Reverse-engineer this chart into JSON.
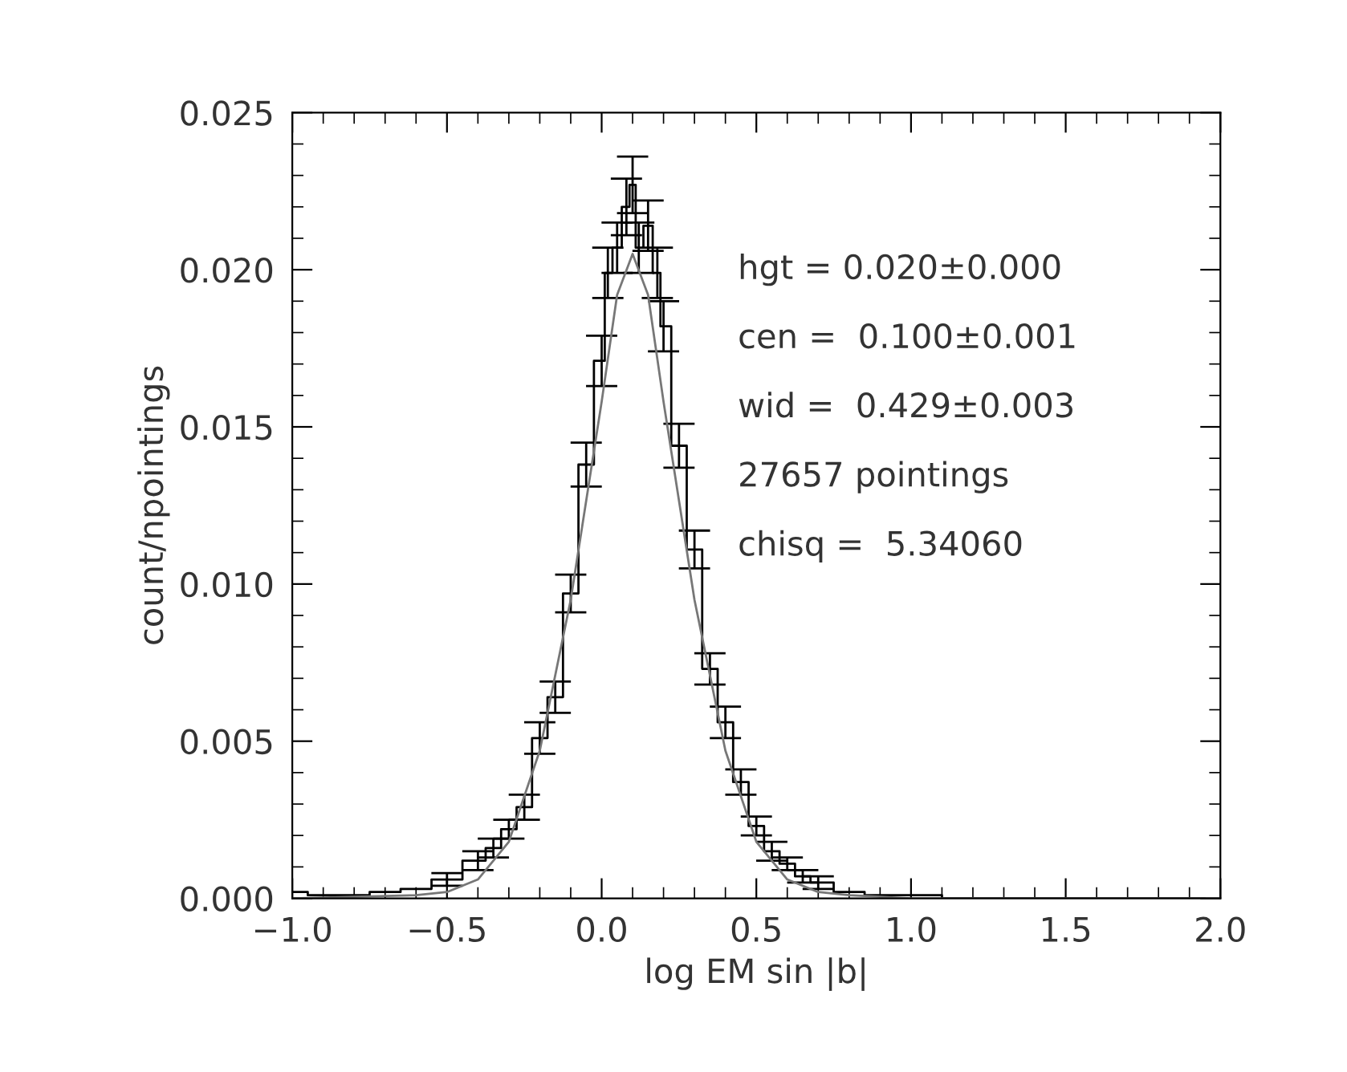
{
  "chart_data": {
    "type": "step",
    "xlabel": "log EM sin |b|",
    "ylabel": "count/npointings",
    "xlim": [
      -1.0,
      2.0
    ],
    "xticks": [
      {
        "value": -1.0,
        "label": "−1.0"
      },
      {
        "value": -0.5,
        "label": "−0.5"
      },
      {
        "value": 0.0,
        "label": "0.0"
      },
      {
        "value": 0.5,
        "label": "0.5"
      },
      {
        "value": 1.0,
        "label": "1.0"
      },
      {
        "value": 1.5,
        "label": "1.5"
      },
      {
        "value": 2.0,
        "label": "2.0"
      }
    ],
    "ylim": [
      0.0,
      0.025
    ],
    "yticks": [
      {
        "value": 0.0,
        "label": "0.000"
      },
      {
        "value": 0.005,
        "label": "0.005"
      },
      {
        "value": 0.01,
        "label": "0.010"
      },
      {
        "value": 0.015,
        "label": "0.015"
      },
      {
        "value": 0.02,
        "label": "0.020"
      },
      {
        "value": 0.025,
        "label": "0.025"
      }
    ],
    "grid": false,
    "legend": false,
    "annotations": [
      "hgt = 0.020±0.000",
      "cen =  0.100±0.001",
      "wid =  0.429±0.003",
      "27657 pointings",
      "chisq =  5.34060"
    ],
    "series": [
      {
        "color": "#000000",
        "x": [
          -1.0,
          -0.9,
          -0.8,
          -0.7,
          -0.6,
          -0.5,
          -0.4,
          -0.35,
          -0.3,
          -0.25,
          -0.2,
          -0.15,
          -0.1,
          -0.05,
          0.0,
          0.02,
          0.05,
          0.08,
          0.1,
          0.12,
          0.15,
          0.18,
          0.2,
          0.25,
          0.3,
          0.35,
          0.4,
          0.45,
          0.5,
          0.55,
          0.6,
          0.65,
          0.7,
          0.8,
          0.9,
          1.0,
          1.2,
          1.4,
          1.6,
          1.8,
          1.95
        ],
        "values": [
          0.0002,
          0.0001,
          0.0001,
          0.0002,
          0.0003,
          0.0006,
          0.0012,
          0.0016,
          0.0022,
          0.0029,
          0.0051,
          0.0064,
          0.0097,
          0.0138,
          0.0171,
          0.0199,
          0.0207,
          0.022,
          0.0227,
          0.0207,
          0.0214,
          0.0199,
          0.0182,
          0.0144,
          0.0111,
          0.0073,
          0.0056,
          0.0037,
          0.0023,
          0.0015,
          0.0011,
          0.0007,
          0.0005,
          0.0002,
          0.0001,
          0.0001,
          0.0,
          0.0,
          0.0,
          0.0,
          0.0
        ],
        "errors": [
          null,
          null,
          null,
          null,
          null,
          0.0002,
          0.0003,
          0.0003,
          0.0003,
          0.0004,
          0.0005,
          0.0005,
          0.0006,
          0.0007,
          0.0008,
          0.0008,
          0.0008,
          0.0009,
          0.0009,
          0.0008,
          0.0008,
          0.0008,
          0.0008,
          0.0007,
          0.0006,
          0.0005,
          0.0005,
          0.0004,
          0.0003,
          0.0003,
          0.0002,
          0.0002,
          0.0002,
          null,
          null,
          null,
          null,
          null,
          null,
          null,
          null
        ]
      },
      {
        "type": "line",
        "color": "#777777",
        "x": [
          -1.0,
          -0.6,
          -0.5,
          -0.4,
          -0.3,
          -0.2,
          -0.1,
          0.0,
          0.05,
          0.1,
          0.15,
          0.2,
          0.3,
          0.4,
          0.5,
          0.6,
          0.7,
          0.8,
          1.0,
          1.5,
          2.0
        ],
        "values": [
          0.0,
          0.0001,
          0.0002,
          0.0006,
          0.0018,
          0.0047,
          0.0095,
          0.0158,
          0.0192,
          0.0205,
          0.0192,
          0.0158,
          0.0095,
          0.0047,
          0.0018,
          0.0006,
          0.0002,
          0.0001,
          0.0,
          0.0,
          0.0
        ]
      }
    ]
  }
}
